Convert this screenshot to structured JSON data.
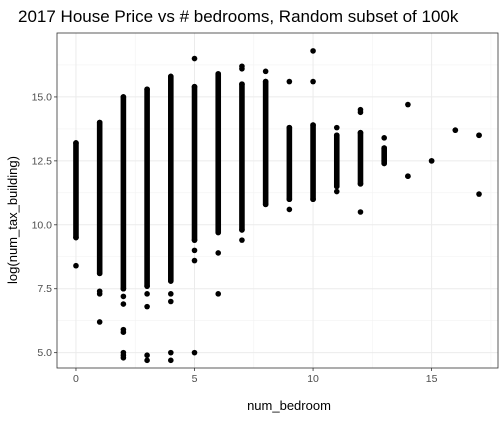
{
  "chart_data": {
    "type": "scatter",
    "title": "2017 House Price vs # bedrooms, Random subset of 100k",
    "xlabel": "num_bedroom",
    "ylabel": "log(num_tax_building)",
    "x_ticks": [
      0,
      5,
      10,
      15
    ],
    "y_ticks": [
      5.0,
      7.5,
      10.0,
      12.5,
      15.0
    ],
    "x_tick_labels": [
      "0",
      "5",
      "10",
      "15"
    ],
    "y_tick_labels": [
      "5.0",
      "7.5",
      "10.0",
      "12.5",
      "15.0"
    ],
    "xlim": [
      -0.8,
      17.8
    ],
    "ylim": [
      4.4,
      17.5
    ],
    "grid": true,
    "point_color": "#000000",
    "columns": [
      {
        "x": 0,
        "y_min": 9.5,
        "y_max": 13.2,
        "outliers": [
          8.4
        ]
      },
      {
        "x": 1,
        "y_min": 8.1,
        "y_max": 14.0,
        "outliers": [
          7.4,
          7.3,
          6.2
        ]
      },
      {
        "x": 2,
        "y_min": 7.5,
        "y_max": 15.0,
        "outliers": [
          7.2,
          6.9,
          5.9,
          5.8,
          5.0,
          4.9,
          4.8
        ]
      },
      {
        "x": 3,
        "y_min": 7.6,
        "y_max": 15.3,
        "outliers": [
          7.3,
          6.8,
          4.9,
          4.7
        ]
      },
      {
        "x": 4,
        "y_min": 7.8,
        "y_max": 15.8,
        "outliers": [
          7.3,
          7.0,
          5.0,
          4.7
        ]
      },
      {
        "x": 5,
        "y_min": 9.4,
        "y_max": 15.4,
        "outliers": [
          16.5,
          9.0,
          8.6,
          5.0
        ]
      },
      {
        "x": 6,
        "y_min": 9.7,
        "y_max": 15.9,
        "outliers": [
          8.9,
          7.3
        ]
      },
      {
        "x": 7,
        "y_min": 9.8,
        "y_max": 15.5,
        "outliers": [
          16.2,
          16.1,
          9.4
        ]
      },
      {
        "x": 8,
        "y_min": 10.8,
        "y_max": 15.6,
        "outliers": [
          16.0
        ]
      },
      {
        "x": 9,
        "y_min": 11.0,
        "y_max": 13.8,
        "outliers": [
          15.6,
          10.6
        ]
      },
      {
        "x": 10,
        "y_min": 11.0,
        "y_max": 13.9,
        "outliers": [
          16.8,
          15.6
        ]
      },
      {
        "x": 11,
        "y_min": 11.5,
        "y_max": 13.5,
        "outliers": [
          13.8,
          11.3
        ]
      },
      {
        "x": 12,
        "y_min": 11.6,
        "y_max": 13.6,
        "outliers": [
          14.5,
          14.4,
          10.5
        ]
      },
      {
        "x": 13,
        "y_min": 12.4,
        "y_max": 13.0,
        "outliers": [
          13.4,
          12.5
        ]
      },
      {
        "x": 14,
        "y_min": 11.9,
        "y_max": 11.9,
        "outliers": [
          14.7
        ]
      },
      {
        "x": 15,
        "y_min": 12.5,
        "y_max": 12.5,
        "outliers": []
      },
      {
        "x": 16,
        "y_min": 13.7,
        "y_max": 13.7,
        "outliers": []
      },
      {
        "x": 17,
        "y_min": 13.5,
        "y_max": 13.5,
        "outliers": [
          11.2
        ]
      }
    ]
  }
}
